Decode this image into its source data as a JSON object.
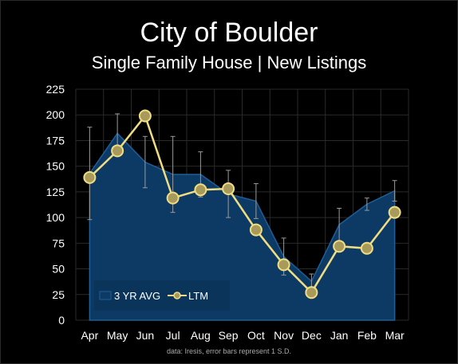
{
  "header": {
    "title": "City of Boulder",
    "subtitle": "Single Family House | New Listings"
  },
  "footnote": "data: Iresis,  error bars represent 1 S.D.",
  "colors": {
    "background": "#000000",
    "area_fill": "#0d3a64",
    "area_edge": "#1f5e96",
    "line": "#f0dc82",
    "marker_fill": "#a89a5a",
    "grid": "#2a2a2a",
    "error_bar": "#9a9a9a"
  },
  "chart_data": {
    "type": "area",
    "categories": [
      "Apr",
      "May",
      "Jun",
      "Jul",
      "Aug",
      "Sep",
      "Oct",
      "Nov",
      "Dec",
      "Jan",
      "Feb",
      "Mar"
    ],
    "ylim": [
      0,
      225
    ],
    "yticks": [
      0,
      25,
      50,
      75,
      100,
      125,
      150,
      175,
      200,
      225
    ],
    "grid": true,
    "legend": "bottom-left",
    "series": [
      {
        "name": "3 YR AVG",
        "type": "area",
        "values": [
          143,
          182,
          154,
          142,
          142,
          123,
          116,
          62,
          38,
          93,
          113,
          126
        ],
        "error": [
          45,
          19,
          25,
          37,
          22,
          23,
          17,
          18,
          7,
          16,
          6,
          10
        ]
      },
      {
        "name": "LTM",
        "type": "line",
        "values": [
          139,
          165,
          199,
          119,
          127,
          128,
          88,
          54,
          27,
          72,
          70,
          105
        ]
      }
    ]
  }
}
